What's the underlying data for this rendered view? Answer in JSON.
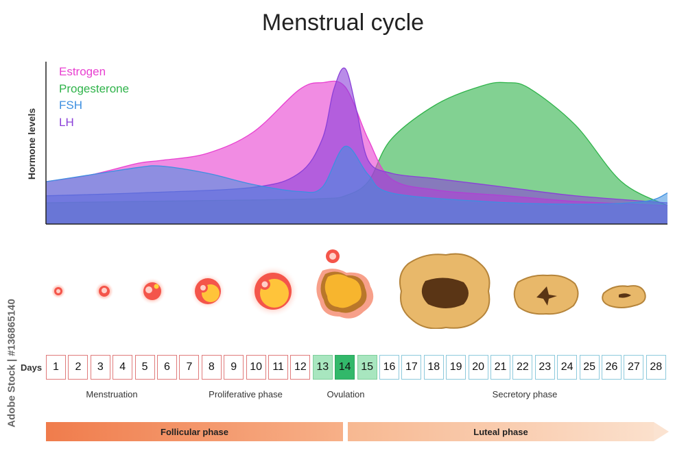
{
  "title": "Menstrual cycle",
  "chart": {
    "ylabel": "Hormone levels",
    "legend": [
      {
        "name": "Estrogen",
        "color": "#e83fd0"
      },
      {
        "name": "Progesterone",
        "color": "#2fb34a"
      },
      {
        "name": "FSH",
        "color": "#3d8fe0"
      },
      {
        "name": "LH",
        "color": "#8a3fd8"
      }
    ]
  },
  "chart_data": {
    "type": "area",
    "x_unit": "day",
    "series": [
      {
        "name": "Estrogen",
        "color": "#e83fd0",
        "x": [
          1,
          3,
          5,
          6,
          8,
          10,
          12,
          13,
          14,
          15,
          16,
          18,
          21,
          24,
          28
        ],
        "values": [
          3,
          3.5,
          4.3,
          4.5,
          5,
          6.5,
          9.5,
          10,
          9.7,
          6,
          3.2,
          2.4,
          2,
          1.6,
          1.3
        ]
      },
      {
        "name": "Progesterone",
        "color": "#2fb34a",
        "x": [
          1,
          5,
          10,
          13,
          14,
          15,
          16,
          18,
          20,
          21,
          22,
          24,
          26,
          28
        ],
        "values": [
          1.5,
          1.6,
          1.7,
          1.8,
          2,
          3,
          6,
          8.5,
          9.8,
          10,
          9.6,
          7,
          3,
          1.3
        ]
      },
      {
        "name": "FSH",
        "color": "#3d8fe0",
        "x": [
          1,
          3,
          5,
          6,
          8,
          10,
          12,
          13,
          14,
          15,
          16,
          20,
          24,
          27,
          28
        ],
        "values": [
          3,
          3.5,
          4,
          4.1,
          3.6,
          2.8,
          2.3,
          2.6,
          5.5,
          3.5,
          2.2,
          1.6,
          1.4,
          1.6,
          2.2
        ]
      },
      {
        "name": "LH",
        "color": "#8a3fd8",
        "x": [
          1,
          5,
          10,
          12,
          13,
          13.5,
          14,
          14.5,
          15,
          16,
          18,
          21,
          24,
          28
        ],
        "values": [
          2,
          2.2,
          2.6,
          3.6,
          6,
          9.5,
          11,
          8,
          4.5,
          3.6,
          3.2,
          2.6,
          2,
          1.5
        ]
      }
    ]
  },
  "ruler": {
    "days_label": "Days",
    "days": [
      "1",
      "2",
      "3",
      "4",
      "5",
      "6",
      "7",
      "8",
      "9",
      "10",
      "11",
      "12",
      "13",
      "14",
      "15",
      "16",
      "17",
      "18",
      "19",
      "20",
      "21",
      "22",
      "23",
      "24",
      "25",
      "26",
      "27",
      "28"
    ]
  },
  "phases": {
    "menstruation": "Menstruation",
    "proliferative": "Proliferative phase",
    "ovulation": "Ovulation",
    "secretory": "Secretory phase",
    "follicular": "Follicular phase",
    "luteal": "Luteal phase"
  },
  "stock_id": "Adobe Stock | #136865140"
}
